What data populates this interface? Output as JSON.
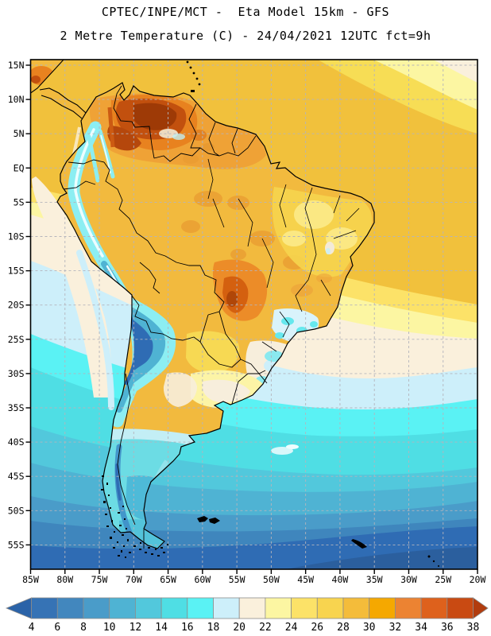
{
  "title": {
    "line1": "CPTEC/INPE/MCT -  Eta Model 15km - GFS",
    "line2": "2 Metre Temperature (C) - 24/04/2021 12UTC fct=9h"
  },
  "map": {
    "lat_labels": [
      "15N",
      "10N",
      "5N",
      "EQ",
      "5S",
      "10S",
      "15S",
      "20S",
      "25S",
      "30S",
      "35S",
      "40S",
      "45S",
      "50S",
      "55S"
    ],
    "lon_labels": [
      "85W",
      "80W",
      "75W",
      "70W",
      "65W",
      "60W",
      "55W",
      "50W",
      "45W",
      "40W",
      "35W",
      "30W",
      "25W",
      "20W"
    ],
    "grid_shown": true
  },
  "colorbar": {
    "tick_labels": [
      "4",
      "6",
      "8",
      "10",
      "12",
      "14",
      "16",
      "18",
      "20",
      "22",
      "24",
      "26",
      "28",
      "30",
      "32",
      "34",
      "36",
      "38"
    ],
    "segment_colors": [
      "#3673b5",
      "#4287be",
      "#4a9cc9",
      "#4fb3d3",
      "#52c8dc",
      "#4fdee4",
      "#5af2f4",
      "#cdeffa",
      "#faf0dc",
      "#fcf6a2",
      "#fce268",
      "#f8d44f",
      "#f4bc3a",
      "#f5a800",
      "#ec8332",
      "#de611c",
      "#c94a12"
    ],
    "left_arrow_color": "#2b63a8",
    "right_arrow_color": "#b13c0e"
  },
  "colors": {
    "background": "#ffffff",
    "frame": "#000000",
    "grid": "#b4b4bc",
    "coastline": "#000000",
    "ocean_base": "#f1c13c",
    "land_base": "#f2ba3e"
  }
}
